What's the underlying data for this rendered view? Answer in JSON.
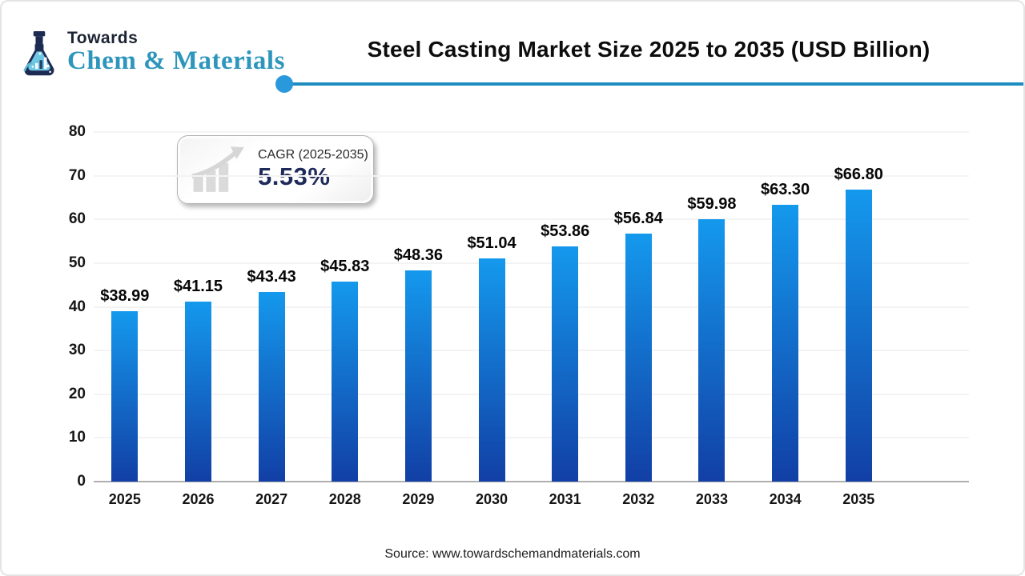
{
  "brand": {
    "towards": "Towards",
    "name": "Chem & Materials"
  },
  "title": "Steel Casting Market Size 2025 to 2035 (USD Billion)",
  "cagr": {
    "label": "CAGR (2025-2035)",
    "value": "5.53%"
  },
  "source": "Source: www.towardschemandmaterials.com",
  "colors": {
    "bar_top": "#1499ed",
    "bar_bottom": "#123fa5",
    "accent_line": "#1f8cc2",
    "accent_dot": "#2a99dc",
    "brand_teal": "#2e96bc",
    "cagr_navy": "#1e2a5a"
  },
  "chart_data": {
    "type": "bar",
    "title": "Steel Casting Market Size 2025 to 2035 (USD Billion)",
    "categories": [
      "2025",
      "2026",
      "2027",
      "2028",
      "2029",
      "2030",
      "2031",
      "2032",
      "2033",
      "2034",
      "2035"
    ],
    "values": [
      38.99,
      41.15,
      43.43,
      45.83,
      48.36,
      51.04,
      53.86,
      56.84,
      59.98,
      63.3,
      66.8
    ],
    "value_labels": [
      "$38.99",
      "$41.15",
      "$43.43",
      "$45.83",
      "$48.36",
      "$51.04",
      "$53.86",
      "$56.84",
      "$59.98",
      "$63.30",
      "$66.80"
    ],
    "xlabel": "",
    "ylabel": "",
    "ylim": [
      0,
      80
    ],
    "yticks": [
      0,
      10,
      20,
      30,
      40,
      50,
      60,
      70,
      80
    ],
    "grid": true,
    "legend": "none",
    "unit": "USD Billion"
  }
}
